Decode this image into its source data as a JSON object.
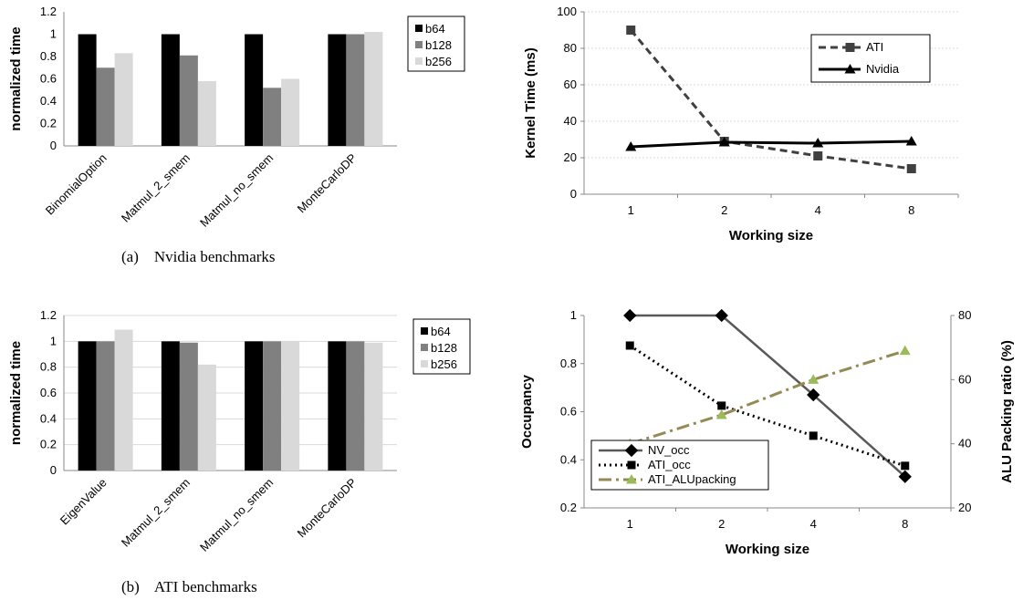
{
  "captions": {
    "a": "(a)    Nvidia benchmarks",
    "b": "(b)    ATI benchmarks"
  },
  "colors": {
    "b64": "#000000",
    "b128": "#808080",
    "b256": "#d9d9d9",
    "ati_dashed": "#404040",
    "nvidia": "#000000",
    "nv_occ": "#595959",
    "ati_occ": "#000000",
    "ati_alupacking": "#948a54",
    "alupacking_marker": "#9bbb59",
    "grid": "#d9d9d9"
  },
  "chart_data": [
    {
      "id": "nvidia-bench",
      "type": "bar",
      "categories": [
        "BinomialOption",
        "Matmul_2_smem",
        "Matmul_no_smem",
        "MonteCarloDP"
      ],
      "series": [
        {
          "name": "b64",
          "values": [
            1.0,
            1.0,
            1.0,
            1.0
          ]
        },
        {
          "name": "b128",
          "values": [
            0.7,
            0.81,
            0.52,
            1.0
          ]
        },
        {
          "name": "b256",
          "values": [
            0.83,
            0.58,
            0.6,
            1.02
          ]
        }
      ],
      "ylabel": "normalized time",
      "xlabel": "",
      "ylim": [
        0,
        1.2
      ],
      "yticks": [
        "0",
        "0.2",
        "0.4",
        "0.6",
        "0.8",
        "1",
        "1.2"
      ],
      "legend_position": "right",
      "grid": false
    },
    {
      "id": "kernel-time",
      "type": "line",
      "categories": [
        "1",
        "2",
        "4",
        "8"
      ],
      "series": [
        {
          "name": "ATI",
          "values": [
            90,
            29,
            21,
            14
          ]
        },
        {
          "name": "Nvidia",
          "values": [
            26,
            28.5,
            28,
            29
          ]
        }
      ],
      "xlabel": "Working size",
      "ylabel": "Kernel Time (ms)",
      "ylim": [
        0,
        100
      ],
      "yticks": [
        "0",
        "20",
        "40",
        "60",
        "80",
        "100"
      ],
      "legend_position": "top-right",
      "grid": true
    },
    {
      "id": "ati-bench",
      "type": "bar",
      "categories": [
        "EigenValue",
        "Matmul_2_smem",
        "Matmul_no_smem",
        "MonteCarloDP"
      ],
      "series": [
        {
          "name": "b64",
          "values": [
            1.0,
            1.0,
            1.0,
            1.0
          ]
        },
        {
          "name": "b128",
          "values": [
            1.0,
            0.99,
            1.0,
            1.0
          ]
        },
        {
          "name": "b256",
          "values": [
            1.09,
            0.82,
            1.0,
            0.99
          ]
        }
      ],
      "ylabel": "normalized time",
      "xlabel": "",
      "ylim": [
        0,
        1.2
      ],
      "yticks": [
        "0",
        "0.2",
        "0.4",
        "0.6",
        "0.8",
        "1",
        "1.2"
      ],
      "legend_position": "right",
      "grid": true
    },
    {
      "id": "occupancy",
      "type": "line",
      "categories": [
        "1",
        "2",
        "4",
        "8"
      ],
      "series": [
        {
          "name": "NV_occ",
          "axis": "left",
          "values": [
            1.0,
            1.0,
            0.67,
            0.33
          ]
        },
        {
          "name": "ATI_occ",
          "axis": "left",
          "values": [
            0.875,
            0.625,
            0.5,
            0.375
          ]
        },
        {
          "name": "ATI_ALUpacking",
          "axis": "right",
          "values": [
            40,
            49,
            60,
            69
          ]
        }
      ],
      "xlabel": "Working size",
      "ylabel": "Occupancy",
      "y2label": "ALU Packing ratio (%)",
      "ylim": [
        0.2,
        1.0
      ],
      "y2lim": [
        20,
        80
      ],
      "yticks": [
        "0.2",
        "0.4",
        "0.6",
        "0.8",
        "1"
      ],
      "y2ticks": [
        "20",
        "40",
        "60",
        "80"
      ],
      "legend_position": "bottom-left",
      "grid": false
    }
  ]
}
